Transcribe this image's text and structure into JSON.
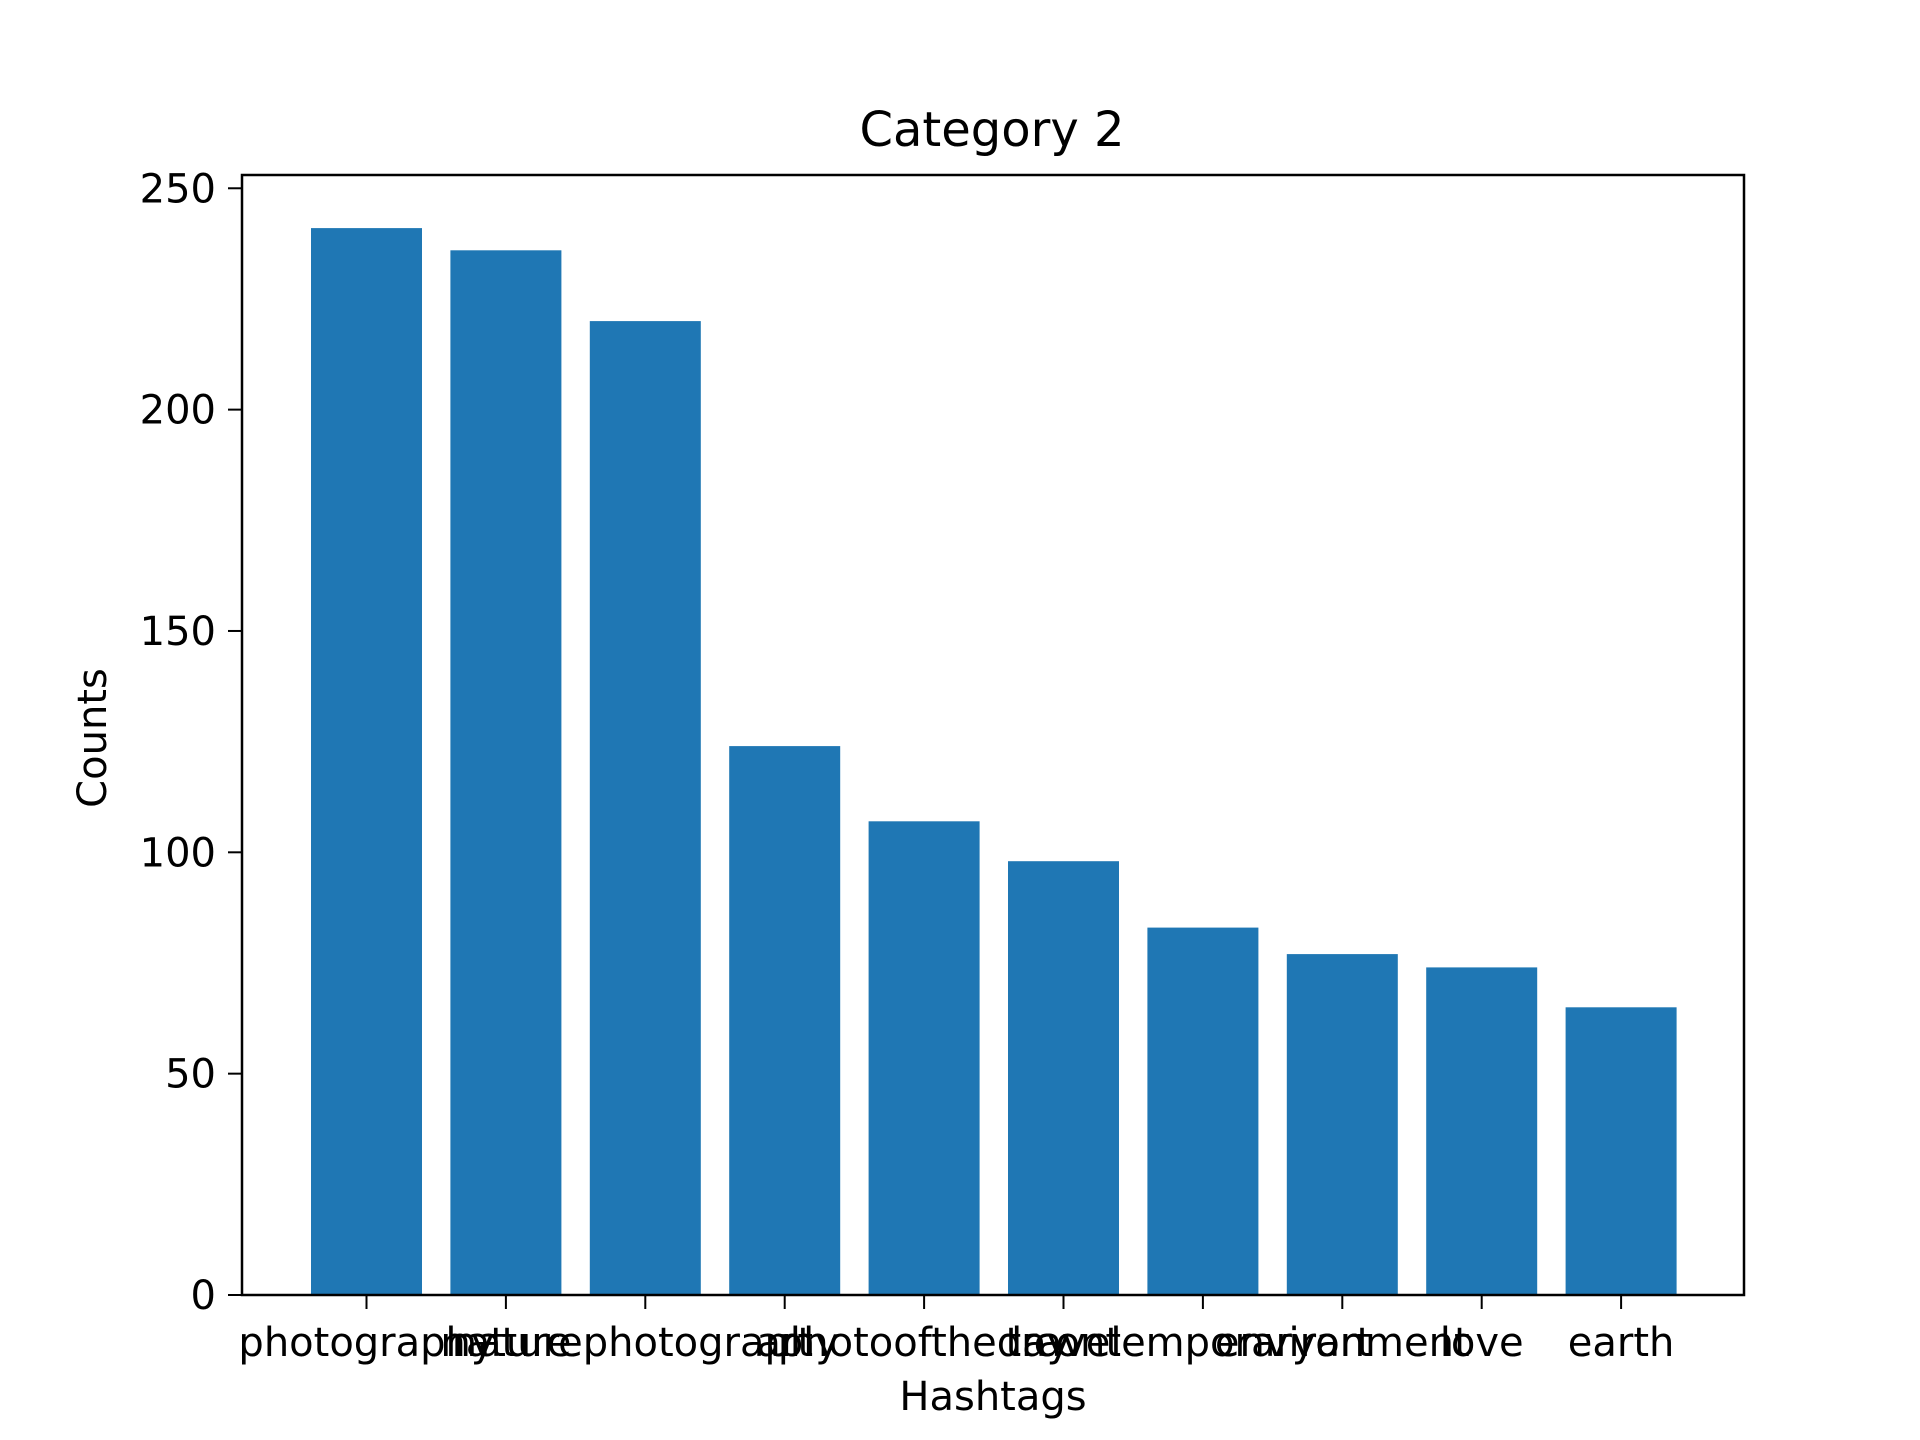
{
  "chart_data": {
    "type": "bar",
    "title": "Category 2",
    "xlabel": "Hashtags",
    "ylabel": "Counts",
    "categories": [
      "photography",
      "nature",
      "naturephotography",
      "art",
      "photooftheday",
      "travel",
      "contemporaryart",
      "environment",
      "love",
      "earth"
    ],
    "values": [
      241,
      236,
      220,
      124,
      107,
      98,
      83,
      77,
      74,
      65
    ],
    "ylim": [
      0,
      253
    ],
    "yticks": [
      0,
      50,
      100,
      150,
      200,
      250
    ],
    "grid": false,
    "bar_color": "#1f77b4"
  }
}
